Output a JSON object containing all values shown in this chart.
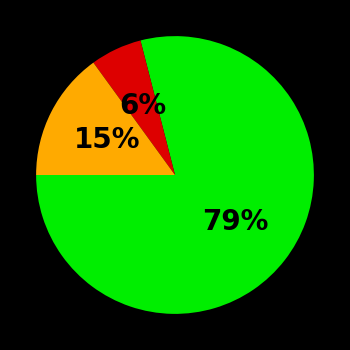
{
  "slices": [
    79,
    6,
    15
  ],
  "colors": [
    "#00ee00",
    "#dd0000",
    "#ffaa00"
  ],
  "labels": [
    "79%",
    "6%",
    "15%"
  ],
  "label_colors": [
    "#000000",
    "#000000",
    "#000000"
  ],
  "background_color": "#000000",
  "startangle": 180,
  "label_fontsize": 20,
  "label_fontweight": "bold",
  "label_radii": [
    0.55,
    0.55,
    0.55
  ]
}
